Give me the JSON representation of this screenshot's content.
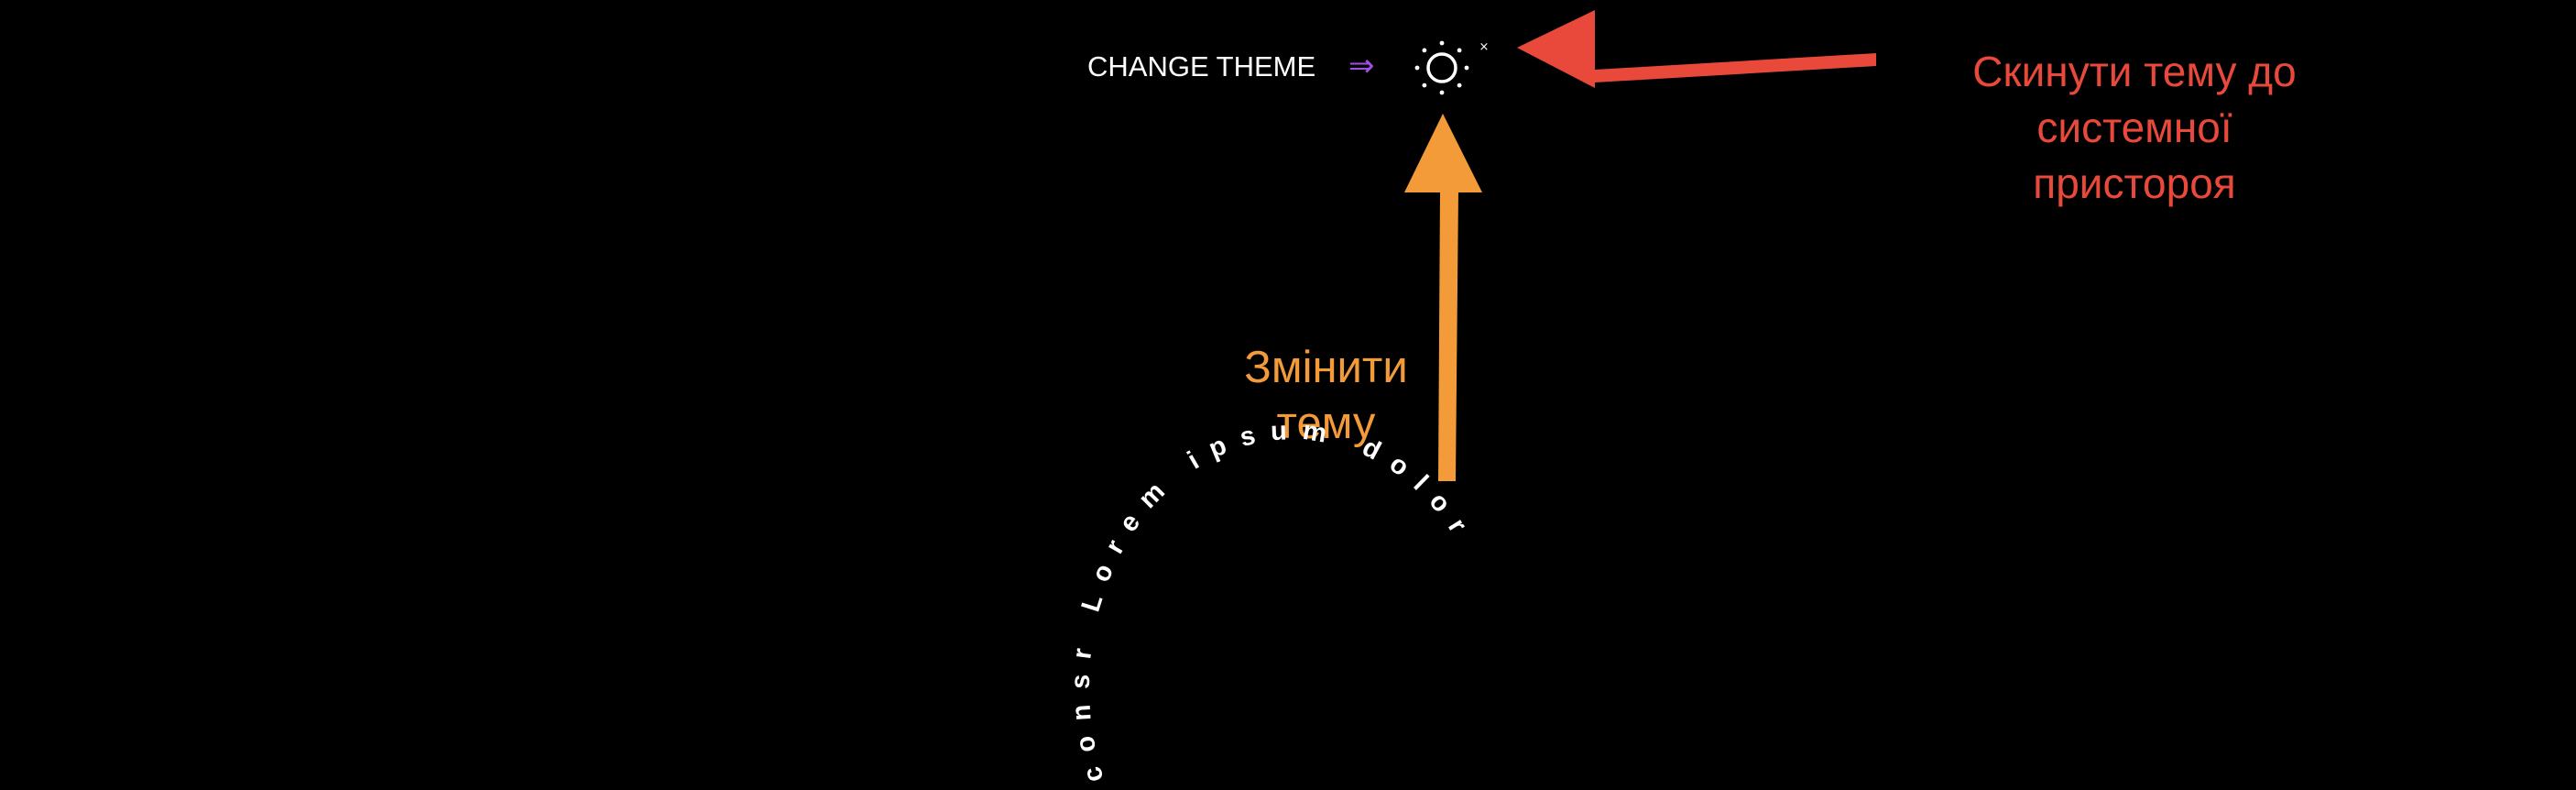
{
  "toolbar": {
    "change_theme_label": "CHANGE THEME",
    "arrow_glyph": "⇒",
    "theme_toggle_icon": "sun-icon",
    "reset_label": "×"
  },
  "annotations": {
    "reset_note": {
      "lines": [
        "Скинути тему до",
        "системної",
        "пристороя"
      ],
      "color": "#e8493b"
    },
    "toggle_note": {
      "lines": [
        "Змінити",
        "тему"
      ],
      "color": "#f29b38"
    }
  },
  "circular_text": {
    "text": "consr Lorem  ipsum  dolor",
    "color": "#ffffff"
  },
  "colors": {
    "background": "#000000",
    "arrow_accent": "#a24ee6",
    "red_arrow": "#e8493b",
    "orange_arrow": "#f29b38"
  }
}
